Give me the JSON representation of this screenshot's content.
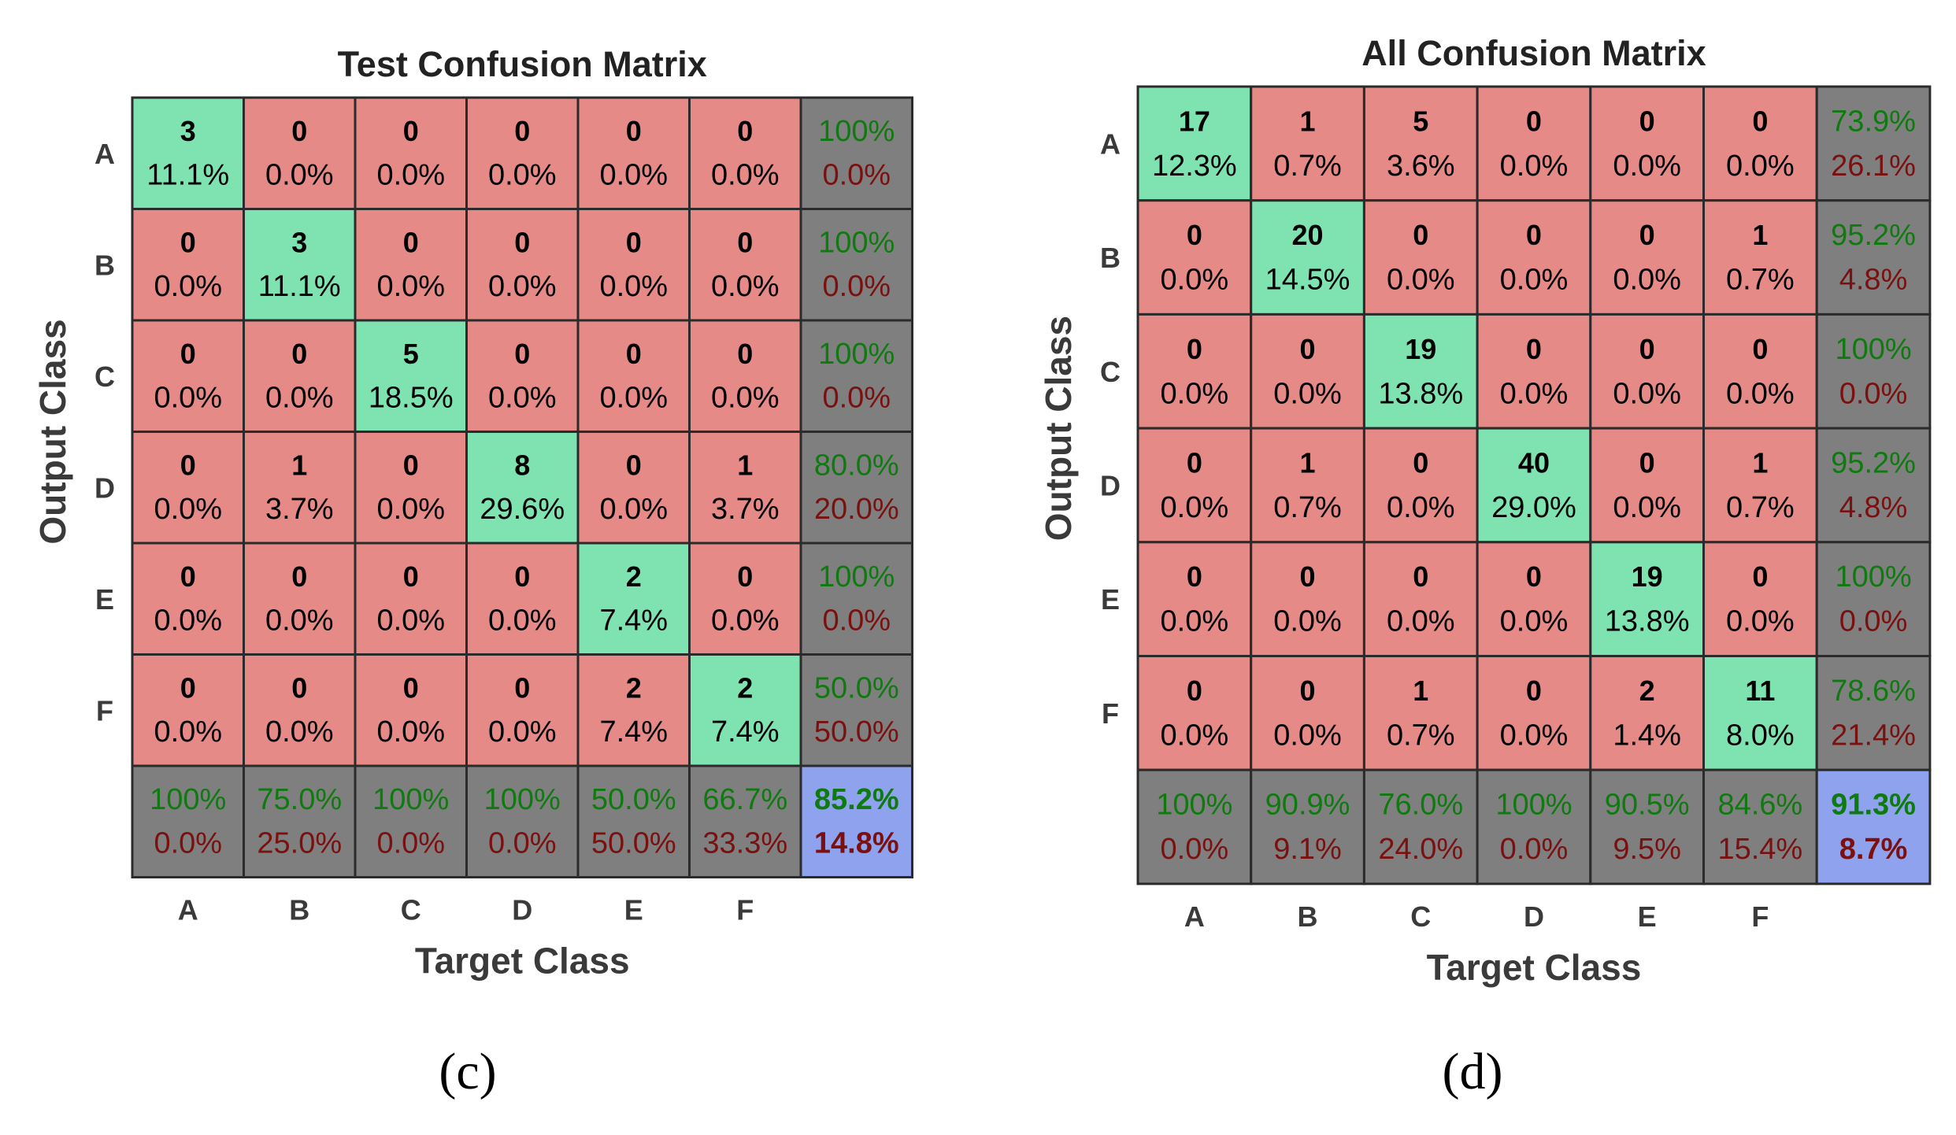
{
  "chart_data": [
    {
      "type": "heatmap",
      "panel_label": "(c)",
      "title": "Test Confusion Matrix",
      "xlabel": "Target Class",
      "ylabel": "Output Class",
      "classes": [
        "A",
        "B",
        "C",
        "D",
        "E",
        "F"
      ],
      "counts": [
        [
          3,
          0,
          0,
          0,
          0,
          0
        ],
        [
          0,
          3,
          0,
          0,
          0,
          0
        ],
        [
          0,
          0,
          5,
          0,
          0,
          0
        ],
        [
          0,
          1,
          0,
          8,
          0,
          1
        ],
        [
          0,
          0,
          0,
          0,
          2,
          0
        ],
        [
          0,
          0,
          0,
          0,
          2,
          2
        ]
      ],
      "percentages": [
        [
          "11.1%",
          "0.0%",
          "0.0%",
          "0.0%",
          "0.0%",
          "0.0%"
        ],
        [
          "0.0%",
          "11.1%",
          "0.0%",
          "0.0%",
          "0.0%",
          "0.0%"
        ],
        [
          "0.0%",
          "0.0%",
          "18.5%",
          "0.0%",
          "0.0%",
          "0.0%"
        ],
        [
          "0.0%",
          "3.7%",
          "0.0%",
          "29.6%",
          "0.0%",
          "3.7%"
        ],
        [
          "0.0%",
          "0.0%",
          "0.0%",
          "0.0%",
          "7.4%",
          "0.0%"
        ],
        [
          "0.0%",
          "0.0%",
          "0.0%",
          "0.0%",
          "7.4%",
          "7.4%"
        ]
      ],
      "row_summary": [
        [
          "100%",
          "0.0%"
        ],
        [
          "100%",
          "0.0%"
        ],
        [
          "100%",
          "0.0%"
        ],
        [
          "80.0%",
          "20.0%"
        ],
        [
          "100%",
          "0.0%"
        ],
        [
          "50.0%",
          "50.0%"
        ]
      ],
      "col_summary": [
        [
          "100%",
          "0.0%"
        ],
        [
          "75.0%",
          "25.0%"
        ],
        [
          "100%",
          "0.0%"
        ],
        [
          "100%",
          "0.0%"
        ],
        [
          "50.0%",
          "50.0%"
        ],
        [
          "66.7%",
          "33.3%"
        ]
      ],
      "total": [
        "85.2%",
        "14.8%"
      ]
    },
    {
      "type": "heatmap",
      "panel_label": "(d)",
      "title": "All Confusion Matrix",
      "xlabel": "Target Class",
      "ylabel": "Output Class",
      "classes": [
        "A",
        "B",
        "C",
        "D",
        "E",
        "F"
      ],
      "counts": [
        [
          17,
          1,
          5,
          0,
          0,
          0
        ],
        [
          0,
          20,
          0,
          0,
          0,
          1
        ],
        [
          0,
          0,
          19,
          0,
          0,
          0
        ],
        [
          0,
          1,
          0,
          40,
          0,
          1
        ],
        [
          0,
          0,
          0,
          0,
          19,
          0
        ],
        [
          0,
          0,
          1,
          0,
          2,
          11
        ]
      ],
      "percentages": [
        [
          "12.3%",
          "0.7%",
          "3.6%",
          "0.0%",
          "0.0%",
          "0.0%"
        ],
        [
          "0.0%",
          "14.5%",
          "0.0%",
          "0.0%",
          "0.0%",
          "0.7%"
        ],
        [
          "0.0%",
          "0.0%",
          "13.8%",
          "0.0%",
          "0.0%",
          "0.0%"
        ],
        [
          "0.0%",
          "0.7%",
          "0.0%",
          "29.0%",
          "0.0%",
          "0.7%"
        ],
        [
          "0.0%",
          "0.0%",
          "0.0%",
          "0.0%",
          "13.8%",
          "0.0%"
        ],
        [
          "0.0%",
          "0.0%",
          "0.7%",
          "0.0%",
          "1.4%",
          "8.0%"
        ]
      ],
      "row_summary": [
        [
          "73.9%",
          "26.1%"
        ],
        [
          "95.2%",
          "4.8%"
        ],
        [
          "100%",
          "0.0%"
        ],
        [
          "95.2%",
          "4.8%"
        ],
        [
          "100%",
          "0.0%"
        ],
        [
          "78.6%",
          "21.4%"
        ]
      ],
      "col_summary": [
        [
          "100%",
          "0.0%"
        ],
        [
          "90.9%",
          "9.1%"
        ],
        [
          "76.0%",
          "24.0%"
        ],
        [
          "100%",
          "0.0%"
        ],
        [
          "90.5%",
          "9.5%"
        ],
        [
          "84.6%",
          "15.4%"
        ]
      ],
      "total": [
        "91.3%",
        "8.7%"
      ]
    }
  ],
  "colors": {
    "correct_cell": "#7ee3b1",
    "wrong_cell": "#e58a86",
    "summary_cell": "#7f7f7f",
    "total_cell": "#8ea2ee",
    "grid_line": "#2b2b2b",
    "summary_accuracy_text": "#0f7a0f",
    "summary_error_text": "#7a1010"
  }
}
